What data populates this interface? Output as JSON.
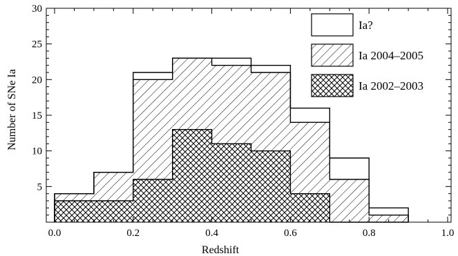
{
  "chart_data": {
    "type": "histogram",
    "xlabel": "Redshift",
    "ylabel": "Number of SNe Ia",
    "xlim": [
      0.0,
      1.0
    ],
    "ylim": [
      0,
      30
    ],
    "x_ticks": [
      0.0,
      0.2,
      0.4,
      0.6,
      0.8,
      1.0
    ],
    "x_tick_labels": [
      "0.0",
      "0.2",
      "0.4",
      "0.6",
      "0.8",
      "1.0"
    ],
    "y_ticks": [
      5,
      10,
      15,
      20,
      25,
      30
    ],
    "y_tick_labels": [
      "5",
      "10",
      "15",
      "20",
      "25",
      "30"
    ],
    "bin_edges": [
      0.0,
      0.1,
      0.2,
      0.3,
      0.4,
      0.5,
      0.6,
      0.7,
      0.8,
      0.9
    ],
    "legend_position": "top-right",
    "series": [
      {
        "name": "Ia?",
        "fill": "open",
        "cumulative_values": [
          4,
          7,
          21,
          23,
          23,
          22,
          16,
          9,
          2
        ]
      },
      {
        "name": "Ia 2004–2005",
        "fill": "single-hatch",
        "cumulative_values": [
          4,
          7,
          20,
          23,
          22,
          21,
          14,
          6,
          1
        ]
      },
      {
        "name": "Ia 2002–2003",
        "fill": "cross-hatch",
        "cumulative_values": [
          3,
          3,
          6,
          13,
          11,
          10,
          4,
          0,
          0
        ]
      }
    ]
  }
}
